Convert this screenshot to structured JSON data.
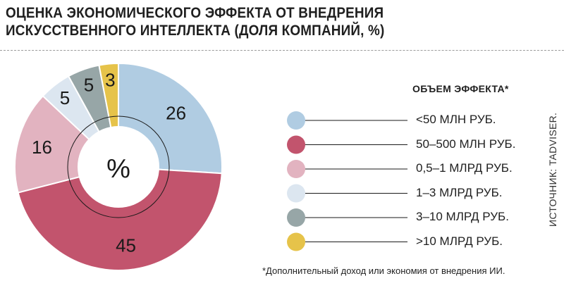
{
  "title": "ОЦЕНКА ЭКОНОМИЧЕСКОГО ЭФФЕКТА ОТ ВНЕДРЕНИЯ ИСКУССТВЕННОГО ИНТЕЛЛЕКТА (ДОЛЯ КОМПАНИЙ, %)",
  "center_label": "%",
  "legend_title": "ОБЪЕМ ЭФФЕКТА*",
  "source": "ИСТОЧНИК: TADVISER.",
  "footnote": "*Дополнительный доход или экономия от внедрения ИИ.",
  "chart_data": {
    "type": "pie",
    "style": "donut",
    "title": "ОЦЕНКА ЭКОНОМИЧЕСКОГО ЭФФЕКТА ОТ ВНЕДРЕНИЯ ИСКУССТВЕННОГО ИНТЕЛЛЕКТА (ДОЛЯ КОМПАНИЙ, %)",
    "legend_title": "ОБЪЕМ ЭФФЕКТА*",
    "legend_position": "right",
    "unit": "%",
    "categories": [
      "<50 МЛН РУБ.",
      "50–500 МЛН РУБ.",
      "0,5–1 МЛРД РУБ.",
      "1–3 МЛРД РУБ.",
      "3–10 МЛРД РУБ.",
      ">10 МЛРД РУБ."
    ],
    "values": [
      26,
      45,
      16,
      5,
      5,
      3
    ],
    "colors": [
      "#b0cce2",
      "#c2546d",
      "#e2b3c0",
      "#dce6f0",
      "#97a6a7",
      "#e6c34a"
    ]
  }
}
